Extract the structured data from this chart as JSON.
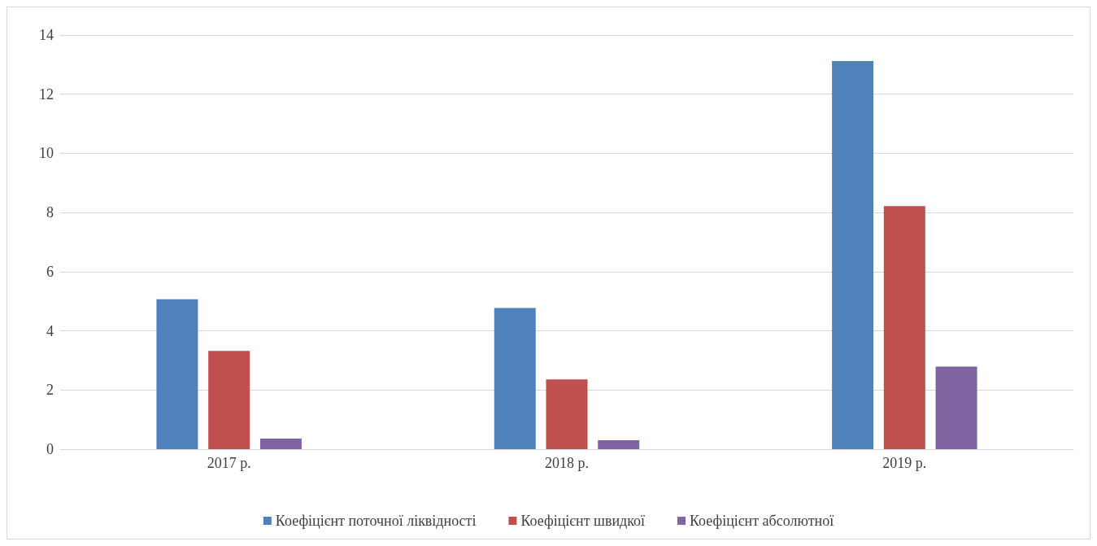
{
  "chart_data": {
    "type": "bar",
    "categories": [
      "2017 р.",
      "2018 р.",
      "2019 р."
    ],
    "series": [
      {
        "name": "Коефіцієнт поточної ліквідності",
        "color": "#4f81bd",
        "values": [
          5.07,
          4.77,
          13.12
        ]
      },
      {
        "name": "Коефіцієнт швидкої",
        "color": "#c0504d",
        "values": [
          3.32,
          2.36,
          8.22
        ]
      },
      {
        "name": "Коефіцієнт абсолютної",
        "color": "#8064a2",
        "values": [
          0.36,
          0.3,
          2.79
        ]
      }
    ],
    "ylim": [
      0,
      14
    ],
    "yticks": [
      0,
      2,
      4,
      6,
      8,
      10,
      12,
      14
    ],
    "grid": "y",
    "legend": "bottom"
  }
}
